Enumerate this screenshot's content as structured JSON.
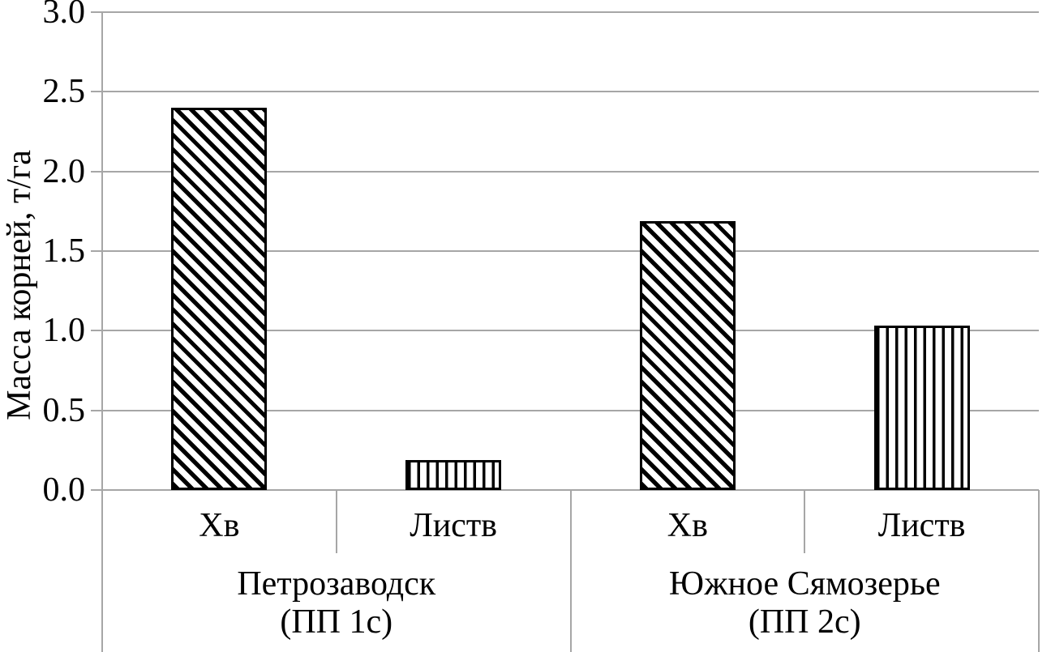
{
  "chart_data": {
    "type": "bar",
    "title": "",
    "ylabel": "Масса корней, т/га",
    "xlabel": "",
    "ylim": [
      0.0,
      3.0
    ],
    "ytick_step": 0.5,
    "ytick_labels": [
      "0.0",
      "0.5",
      "1.0",
      "1.5",
      "2.0",
      "2.5",
      "3.0"
    ],
    "grid": true,
    "legend_position": "none",
    "categories": [
      "Хв",
      "Листв",
      "Хв",
      "Листв"
    ],
    "values": [
      2.4,
      0.19,
      1.69,
      1.03
    ],
    "groups": [
      {
        "label_lines": [
          "Петрозаводск",
          "(ПП 1с)"
        ],
        "bars": [
          {
            "category": "Хв",
            "value": 2.4,
            "pattern": "diagonal-hatch"
          },
          {
            "category": "Листв",
            "value": 0.19,
            "pattern": "vertical-lines"
          }
        ]
      },
      {
        "label_lines": [
          "Южное Сямозерье",
          "(ПП 2с)"
        ],
        "bars": [
          {
            "category": "Хв",
            "value": 1.69,
            "pattern": "diagonal-hatch"
          },
          {
            "category": "Листв",
            "value": 1.03,
            "pattern": "vertical-lines"
          }
        ]
      }
    ],
    "colors": {
      "axis_line": "#a6a6a6",
      "gridline": "#a6a6a6",
      "bar_stroke": "#000000",
      "bar_fill": "#ffffff",
      "text": "#000000",
      "background": "#ffffff"
    }
  }
}
